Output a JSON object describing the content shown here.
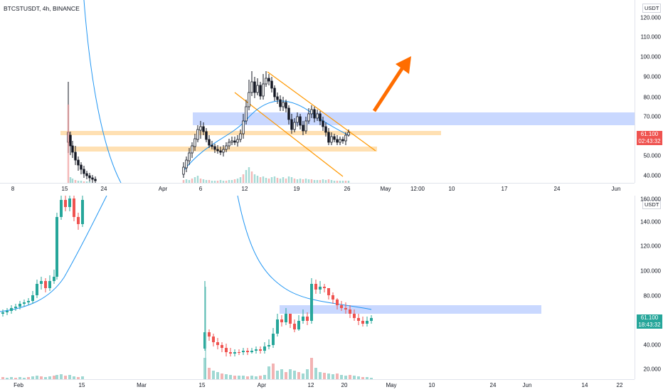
{
  "top_chart": {
    "title": "BTCSTUSDT, 4h, BINANCE",
    "unit": "USDT",
    "y_ticks": [
      "120.000",
      "110.000",
      "100.000",
      "90.000",
      "80.000",
      "70.000",
      "50.000",
      "40.000"
    ],
    "x_ticks": [
      "8",
      "15",
      "24",
      "Apr",
      "6",
      "12",
      "19",
      "26",
      "May",
      "12:00",
      "10",
      "17",
      "24",
      "Jun"
    ],
    "last_price": "61.100",
    "countdown": "02:43:32",
    "colors": {
      "up": "#26a69a",
      "down": "#ef5350",
      "price_tag": "#ef5350",
      "zone_blue": "#2962ff",
      "zone_orange": "#ff9800",
      "arrow": "#ff6d00",
      "ma": "#2196f3"
    }
  },
  "bottom_chart": {
    "unit": "USDT",
    "y_ticks": [
      "160.000",
      "140.000",
      "120.000",
      "100.000",
      "80.000",
      "60.000",
      "40.000",
      "20.000"
    ],
    "x_ticks": [
      "Feb",
      "15",
      "Mar",
      "15",
      "Apr",
      "12",
      "20",
      "May",
      "10",
      "24",
      "Jun",
      "14",
      "22"
    ],
    "last_price": "61.100",
    "countdown": "18:43:32",
    "colors": {
      "price_tag": "#26a69a"
    }
  }
}
